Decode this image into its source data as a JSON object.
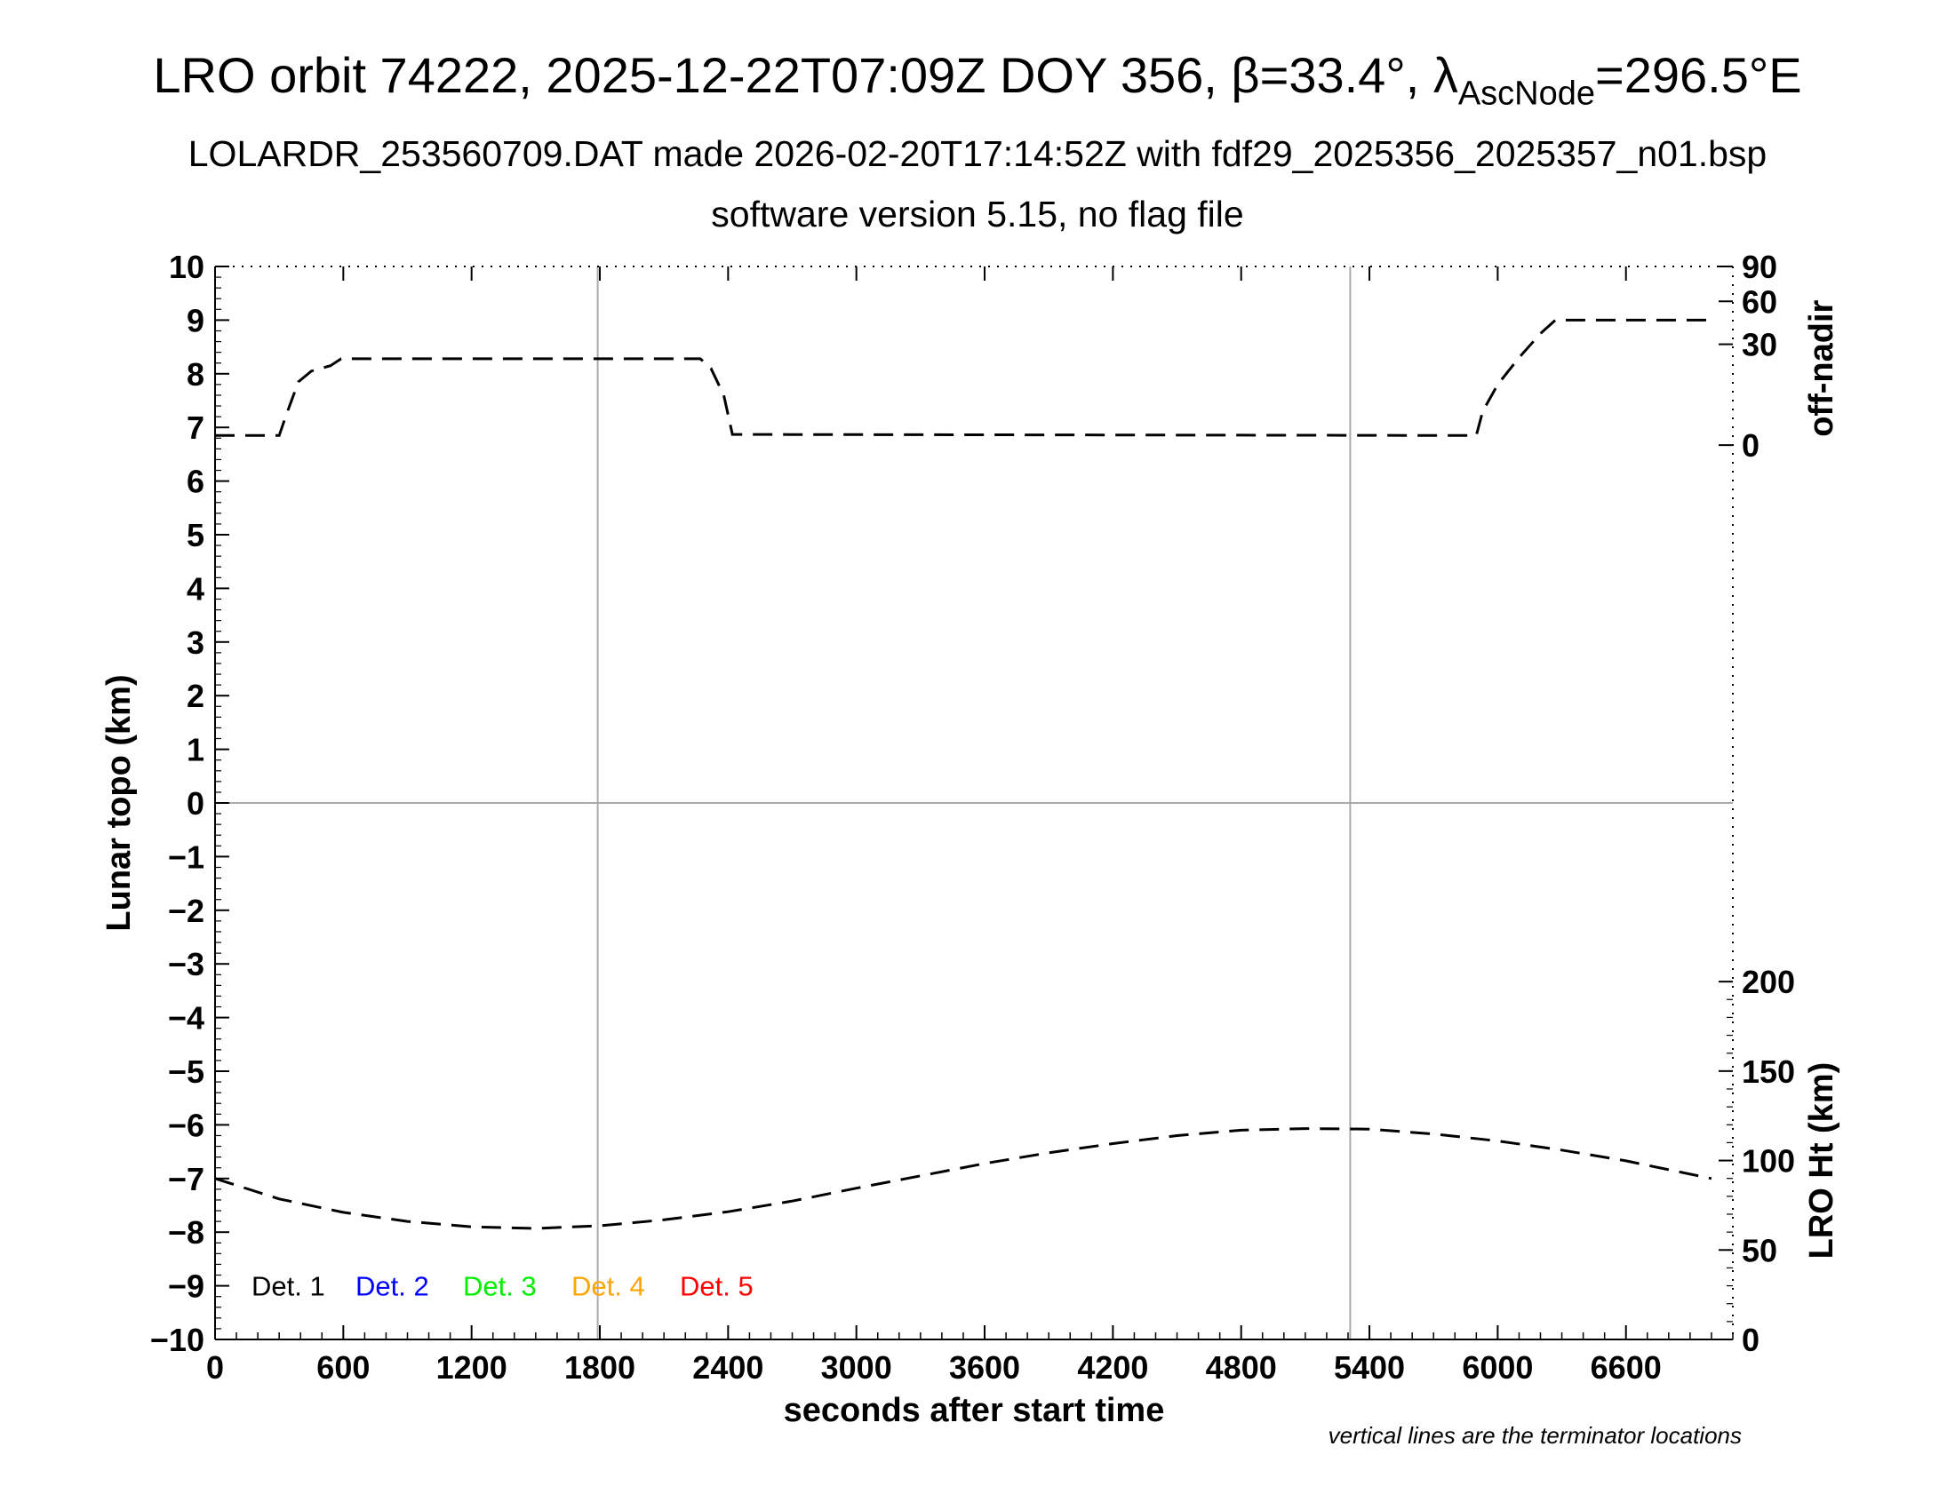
{
  "title": {
    "prefix": "LRO orbit 74222, 2025-12-22T07:09Z DOY 356, β=33.4°, λ",
    "sub": "AscNode",
    "suffix": "=296.5°E"
  },
  "subtitle": "LOLARDR_253560709.DAT made 2026-02-20T17:14:52Z with fdf29_2025356_2025357_n01.bsp",
  "subtitle2": "software version 5.15, no flag file",
  "note": "vertical lines are the terminator locations",
  "chart_data": {
    "type": "line",
    "xlabel": "seconds after start time",
    "ylabel": "Lunar topo (km)",
    "xlim": [
      0,
      7100
    ],
    "ylim": [
      -10,
      10
    ],
    "x_ticks": [
      0,
      600,
      1200,
      1800,
      2400,
      3000,
      3600,
      4200,
      4800,
      5400,
      6000,
      6600
    ],
    "y_ticks": [
      -10,
      -9,
      -8,
      -7,
      -6,
      -5,
      -4,
      -3,
      -2,
      -1,
      0,
      1,
      2,
      3,
      4,
      5,
      6,
      7,
      8,
      9,
      10
    ],
    "y_tick_labels": [
      "−10",
      "−9",
      "−8",
      "−7",
      "−6",
      "−5",
      "−4",
      "−3",
      "−2",
      "−1",
      "0",
      "1",
      "2",
      "3",
      "4",
      "5",
      "6",
      "7",
      "8",
      "9",
      "10"
    ],
    "terminator_lines_x": [
      1790,
      5310
    ],
    "right_axis_upper": {
      "label": "off-nadir",
      "ticks": [
        {
          "value": 0,
          "label": "0",
          "y_topo": 6.67
        },
        {
          "value": 30,
          "label": "30",
          "y_topo": 8.55
        },
        {
          "value": 60,
          "label": "60",
          "y_topo": 9.35
        },
        {
          "value": 90,
          "label": "90",
          "y_topo": 10
        }
      ]
    },
    "right_axis_lower": {
      "label": "LRO Ht (km)",
      "range": [
        0,
        200
      ],
      "y_topo_range": [
        -10,
        -3.33
      ],
      "ticks": [
        0,
        50,
        100,
        150,
        200
      ]
    },
    "legend": [
      {
        "label": "Det. 1",
        "color": "#000000"
      },
      {
        "label": "Det. 2",
        "color": "#0000ff"
      },
      {
        "label": "Det. 3",
        "color": "#00ee00"
      },
      {
        "label": "Det. 4",
        "color": "#ffa500"
      },
      {
        "label": "Det. 5",
        "color": "#ff0000"
      }
    ],
    "series": [
      {
        "label": "off-nadir",
        "axis": "right_upper",
        "points_topo": [
          [
            0,
            6.85
          ],
          [
            300,
            6.85
          ],
          [
            330,
            7.2
          ],
          [
            390,
            7.85
          ],
          [
            450,
            8.05
          ],
          [
            540,
            8.15
          ],
          [
            590,
            8.28
          ],
          [
            2270,
            8.28
          ],
          [
            2320,
            8.1
          ],
          [
            2380,
            7.6
          ],
          [
            2420,
            6.87
          ],
          [
            5900,
            6.85
          ],
          [
            5930,
            7.3
          ],
          [
            6000,
            7.8
          ],
          [
            6100,
            8.3
          ],
          [
            6200,
            8.75
          ],
          [
            6270,
            9.0
          ],
          [
            7000,
            9.0
          ]
        ]
      },
      {
        "label": "LRO Ht",
        "axis": "right_lower",
        "points_topo": [
          [
            0,
            -7.0
          ],
          [
            300,
            -7.38
          ],
          [
            600,
            -7.63
          ],
          [
            900,
            -7.8
          ],
          [
            1200,
            -7.9
          ],
          [
            1500,
            -7.93
          ],
          [
            1800,
            -7.88
          ],
          [
            2100,
            -7.77
          ],
          [
            2400,
            -7.62
          ],
          [
            2700,
            -7.42
          ],
          [
            3000,
            -7.18
          ],
          [
            3300,
            -6.95
          ],
          [
            3600,
            -6.72
          ],
          [
            3900,
            -6.52
          ],
          [
            4200,
            -6.35
          ],
          [
            4500,
            -6.2
          ],
          [
            4800,
            -6.1
          ],
          [
            5100,
            -6.07
          ],
          [
            5400,
            -6.08
          ],
          [
            5700,
            -6.17
          ],
          [
            6000,
            -6.3
          ],
          [
            6300,
            -6.47
          ],
          [
            6600,
            -6.67
          ],
          [
            7000,
            -7.0
          ]
        ]
      }
    ]
  }
}
